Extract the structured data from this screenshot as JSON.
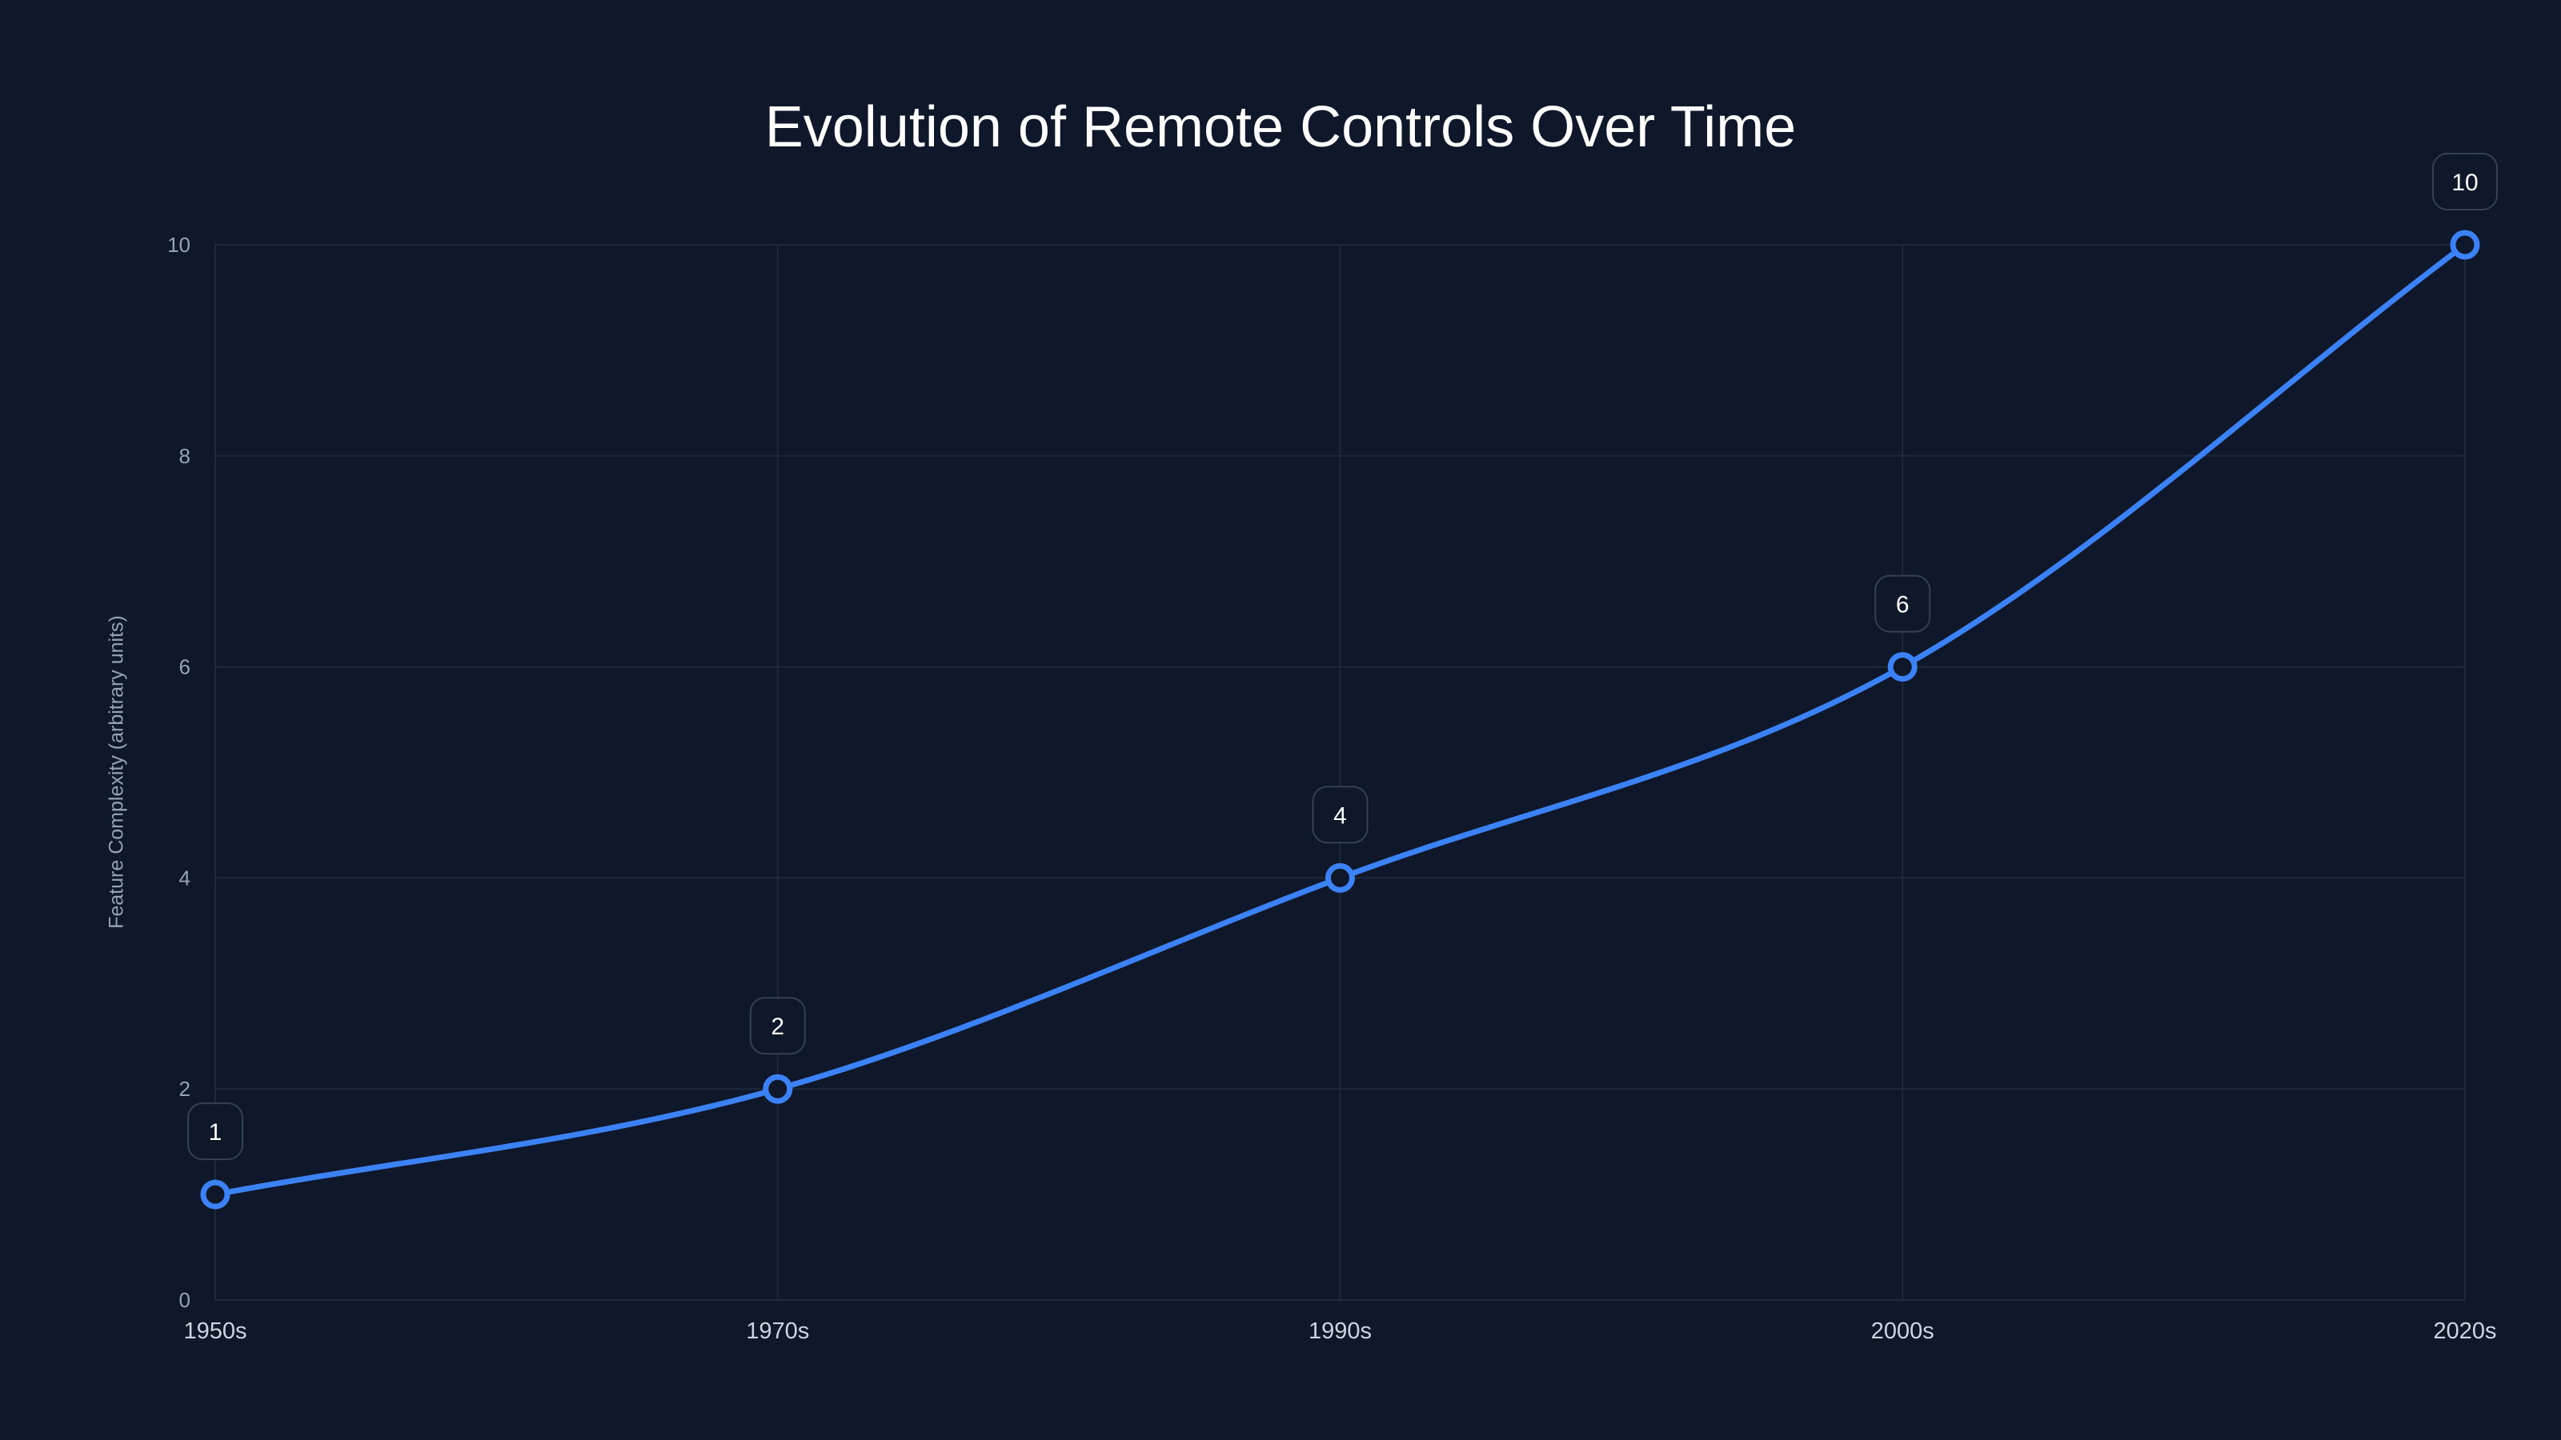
{
  "chart_data": {
    "type": "line",
    "title": "Evolution of Remote Controls Over Time",
    "xlabel": "",
    "ylabel": "Feature Complexity (arbitrary units)",
    "categories": [
      "1950s",
      "1970s",
      "1990s",
      "2000s",
      "2020s"
    ],
    "series": [
      {
        "name": "Feature Complexity",
        "values": [
          1,
          2,
          4,
          6,
          10
        ],
        "color": "#3b82f6",
        "smooth": true,
        "markers": "hollow-circle",
        "data_labels": [
          "1",
          "2",
          "4",
          "6",
          "10"
        ]
      }
    ],
    "ylim": [
      0,
      10
    ],
    "yticks": [
      0,
      2,
      4,
      6,
      8,
      10
    ],
    "grid": true,
    "legend": "none"
  },
  "theme": {
    "background": "#0f172a",
    "line_color": "#3b82f6",
    "grid_color": "#1e293b",
    "title_color": "#ffffff",
    "tick_color": "#94a3b8",
    "label_box_border": "#334155"
  }
}
